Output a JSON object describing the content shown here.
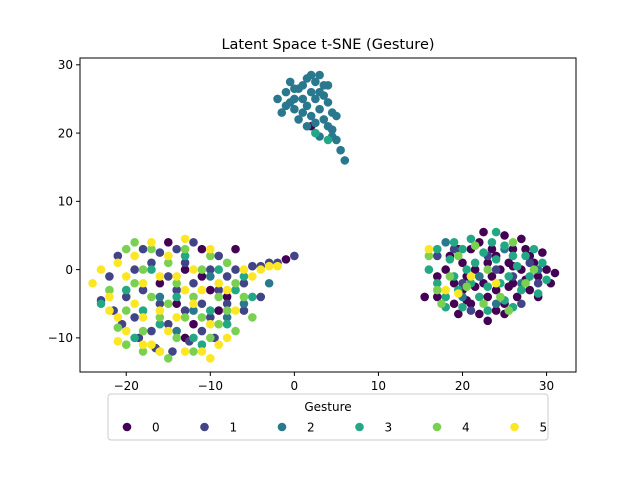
{
  "chart_data": {
    "type": "scatter",
    "title": "Latent Space t-SNE (Gesture)",
    "xlabel": "",
    "ylabel": "",
    "xlim": [
      -25.5,
      33.5
    ],
    "ylim": [
      -15,
      31
    ],
    "xticks": [
      -20,
      -10,
      0,
      10,
      20,
      30
    ],
    "yticks": [
      -10,
      0,
      10,
      20,
      30
    ],
    "grid": false,
    "legend": {
      "title": "Gesture",
      "placement": "bottom-center",
      "entries": [
        "0",
        "1",
        "2",
        "3",
        "4",
        "5"
      ]
    },
    "colors": {
      "0": "#440154",
      "1": "#414487",
      "2": "#2a788e",
      "3": "#22a884",
      "4": "#7ad151",
      "5": "#fde725"
    },
    "series": [
      {
        "name": "0",
        "points": [
          [
            -11,
            -1
          ],
          [
            -13,
            0
          ],
          [
            -10,
            -3
          ],
          [
            -14,
            -5
          ],
          [
            -16,
            -2
          ],
          [
            -8,
            -4
          ],
          [
            -11,
            3
          ],
          [
            -15,
            4
          ],
          [
            -9,
            -6
          ],
          [
            -12,
            -8
          ],
          [
            -7,
            3
          ],
          [
            -13,
            -10
          ],
          [
            -1,
            1.5
          ],
          [
            2,
            21
          ],
          [
            15.5,
            -4
          ],
          [
            17,
            -4
          ],
          [
            17,
            -1
          ],
          [
            18,
            0
          ],
          [
            18.5,
            2
          ],
          [
            19,
            -2
          ],
          [
            19,
            -5
          ],
          [
            19.5,
            -6.5
          ],
          [
            20,
            1
          ],
          [
            20,
            -3
          ],
          [
            20.5,
            -1
          ],
          [
            21,
            -5
          ],
          [
            21,
            3
          ],
          [
            21.5,
            0
          ],
          [
            22,
            -6.5
          ],
          [
            22,
            4
          ],
          [
            22.5,
            -2
          ],
          [
            23,
            1
          ],
          [
            23,
            -4
          ],
          [
            23,
            -7.5
          ],
          [
            23.5,
            -1
          ],
          [
            24,
            2
          ],
          [
            24,
            -3
          ],
          [
            24.5,
            0
          ],
          [
            25,
            5
          ],
          [
            25,
            -5
          ],
          [
            25.5,
            1
          ],
          [
            26,
            -2
          ],
          [
            26,
            3
          ],
          [
            26.5,
            -4
          ],
          [
            27,
            0
          ],
          [
            27,
            4.5
          ],
          [
            27.5,
            -1.5
          ],
          [
            28,
            2
          ],
          [
            28,
            -3
          ],
          [
            28.5,
            1
          ],
          [
            29,
            -1
          ],
          [
            29,
            -4
          ],
          [
            29.5,
            2.5
          ],
          [
            30,
            0
          ],
          [
            30.5,
            -2
          ],
          [
            31,
            -0.5
          ],
          [
            22,
            -1
          ],
          [
            24,
            -6
          ],
          [
            26,
            0.5
          ],
          [
            20.5,
            -4.5
          ],
          [
            23.5,
            3
          ],
          [
            25.5,
            -2.5
          ],
          [
            21.5,
            -2.5
          ],
          [
            27.5,
            3
          ],
          [
            19.5,
            3
          ],
          [
            25,
            -6.5
          ],
          [
            22.5,
            5.5
          ]
        ]
      },
      {
        "name": "1",
        "points": [
          [
            -22,
            -1
          ],
          [
            -21,
            2
          ],
          [
            -20,
            -4
          ],
          [
            -19,
            0
          ],
          [
            -19,
            -7
          ],
          [
            -18,
            3
          ],
          [
            -18,
            -3
          ],
          [
            -17,
            -9
          ],
          [
            -17,
            1
          ],
          [
            -16,
            -5
          ],
          [
            -16,
            2.5
          ],
          [
            -15,
            -1
          ],
          [
            -15,
            -8
          ],
          [
            -14,
            3
          ],
          [
            -14,
            -3
          ],
          [
            -13,
            -6
          ],
          [
            -13,
            1
          ],
          [
            -12,
            -2
          ],
          [
            -12,
            4
          ],
          [
            -11,
            -5
          ],
          [
            -11,
            -9
          ],
          [
            -10,
            0
          ],
          [
            -10,
            -7
          ],
          [
            -9,
            2
          ],
          [
            -9,
            -3
          ],
          [
            -8,
            -1
          ],
          [
            -8,
            -5
          ],
          [
            -7,
            0
          ],
          [
            -6,
            -2
          ],
          [
            -6,
            -6
          ],
          [
            -5,
            0.5
          ],
          [
            -4,
            -4
          ],
          [
            -4,
            0.5
          ],
          [
            -3,
            1
          ],
          [
            -2,
            1
          ],
          [
            0,
            2
          ],
          [
            -20.5,
            -8
          ],
          [
            -18.5,
            -10
          ],
          [
            -16.5,
            -11.5
          ],
          [
            -23,
            -4.5
          ],
          [
            -21.5,
            -6
          ],
          [
            -12.5,
            -10.5
          ],
          [
            -9.5,
            -10
          ],
          [
            -14.5,
            -12
          ],
          [
            17,
            2
          ],
          [
            19,
            3
          ],
          [
            23,
            2
          ],
          [
            26,
            -1
          ],
          [
            29,
            -2
          ],
          [
            21,
            -6
          ],
          [
            24,
            0
          ],
          [
            27,
            -5
          ],
          [
            20,
            -2
          ],
          [
            28,
            1
          ]
        ]
      },
      {
        "name": "2",
        "points": [
          [
            -1,
            26
          ],
          [
            -1,
            24
          ],
          [
            -0.5,
            27.5
          ],
          [
            0,
            25
          ],
          [
            0,
            23.5
          ],
          [
            0.5,
            26.5
          ],
          [
            0.5,
            22
          ],
          [
            1,
            27
          ],
          [
            1,
            25
          ],
          [
            1,
            23
          ],
          [
            1.5,
            28
          ],
          [
            1.5,
            24
          ],
          [
            2,
            26
          ],
          [
            2,
            22.5
          ],
          [
            2.5,
            27.5
          ],
          [
            2.5,
            25
          ],
          [
            2.5,
            21.5
          ],
          [
            3,
            28.5
          ],
          [
            3,
            26
          ],
          [
            3,
            23.5
          ],
          [
            3.5,
            25.5
          ],
          [
            3.5,
            22
          ],
          [
            4,
            27
          ],
          [
            4,
            24.5
          ],
          [
            4,
            21
          ],
          [
            4.5,
            23
          ],
          [
            4.5,
            20.5
          ],
          [
            5,
            22.5
          ],
          [
            5,
            19
          ],
          [
            5.5,
            17.5
          ],
          [
            6,
            16
          ],
          [
            -2,
            25
          ],
          [
            -1.5,
            23
          ],
          [
            -0.5,
            24.5
          ],
          [
            2,
            28.5
          ],
          [
            3.5,
            27
          ],
          [
            1.5,
            21
          ],
          [
            4.5,
            19.5
          ],
          [
            3,
            19.5
          ],
          [
            0,
            26.5
          ],
          [
            -16,
            -4
          ],
          [
            -12,
            -6
          ],
          [
            -10,
            -1
          ],
          [
            -6,
            -5
          ],
          [
            -14,
            -9
          ],
          [
            -8,
            -7
          ],
          [
            -3,
            -2
          ],
          [
            18,
            4
          ],
          [
            22,
            -1
          ],
          [
            25,
            3
          ],
          [
            27,
            -2
          ],
          [
            20,
            -4
          ],
          [
            24,
            -5
          ],
          [
            29,
            0
          ]
        ]
      },
      {
        "name": "3",
        "points": [
          [
            -23,
            -5
          ],
          [
            -20,
            -3
          ],
          [
            -18,
            -6
          ],
          [
            -16,
            -8
          ],
          [
            -14,
            -4
          ],
          [
            -12,
            -10
          ],
          [
            -10,
            -6
          ],
          [
            -8,
            -8
          ],
          [
            -7,
            -3
          ],
          [
            -9,
            0
          ],
          [
            -13,
            2
          ],
          [
            -17,
            0
          ],
          [
            -19,
            -10
          ],
          [
            -11,
            -11
          ],
          [
            -6,
            -1
          ],
          [
            -5,
            -4
          ],
          [
            16,
            0
          ],
          [
            17,
            3
          ],
          [
            17,
            -2
          ],
          [
            18,
            -4
          ],
          [
            18.5,
            1.5
          ],
          [
            19,
            4
          ],
          [
            19,
            -1
          ],
          [
            19.5,
            -3
          ],
          [
            20,
            3
          ],
          [
            20,
            -5.5
          ],
          [
            20.5,
            0
          ],
          [
            21,
            4.5
          ],
          [
            21,
            -2
          ],
          [
            21.5,
            1
          ],
          [
            22,
            -4
          ],
          [
            22.5,
            2.5
          ],
          [
            23,
            -2.5
          ],
          [
            23,
            -6
          ],
          [
            23.5,
            4
          ],
          [
            24,
            1.5
          ],
          [
            24.5,
            -2
          ],
          [
            25,
            3.5
          ],
          [
            25,
            -4.5
          ],
          [
            25.5,
            -1
          ],
          [
            26,
            2
          ],
          [
            26,
            -5.5
          ],
          [
            26.5,
            0.5
          ],
          [
            27,
            -3
          ],
          [
            27.5,
            2
          ],
          [
            28,
            -1
          ],
          [
            28.5,
            3
          ],
          [
            29,
            -3.5
          ],
          [
            29.5,
            1
          ],
          [
            30,
            -1.5
          ],
          [
            18,
            -5.5
          ],
          [
            24,
            5.5
          ],
          [
            2.5,
            20
          ],
          [
            4,
            19
          ]
        ]
      },
      {
        "name": "4",
        "points": [
          [
            -22,
            -3
          ],
          [
            -21,
            -8.5
          ],
          [
            -20,
            3
          ],
          [
            -20,
            -6
          ],
          [
            -19,
            -2
          ],
          [
            -19,
            4
          ],
          [
            -18,
            -9
          ],
          [
            -18,
            0
          ],
          [
            -17,
            -4
          ],
          [
            -17,
            3
          ],
          [
            -16,
            -7
          ],
          [
            -16,
            -12
          ],
          [
            -15,
            1
          ],
          [
            -15,
            -5
          ],
          [
            -14,
            -10
          ],
          [
            -14,
            -2
          ],
          [
            -13,
            -7
          ],
          [
            -13,
            3
          ],
          [
            -12,
            -4
          ],
          [
            -12,
            -12
          ],
          [
            -11,
            0
          ],
          [
            -11,
            -7
          ],
          [
            -10,
            -10
          ],
          [
            -10,
            2
          ],
          [
            -9,
            -4
          ],
          [
            -9,
            -8
          ],
          [
            -8,
            1
          ],
          [
            -8,
            -6
          ],
          [
            -7,
            -2
          ],
          [
            -7,
            -9
          ],
          [
            -6,
            -4
          ],
          [
            -5,
            -7
          ],
          [
            -15,
            -13
          ],
          [
            -18,
            -12
          ],
          [
            -20,
            -11
          ],
          [
            16,
            2
          ],
          [
            17,
            -3
          ],
          [
            18.5,
            -1
          ],
          [
            19.5,
            2
          ],
          [
            20.5,
            -2.5
          ],
          [
            21.5,
            3.5
          ],
          [
            23,
            0
          ],
          [
            24.5,
            -4
          ],
          [
            26,
            4
          ],
          [
            27.5,
            -2
          ],
          [
            28.5,
            0
          ],
          [
            17.5,
            -5
          ],
          [
            25.5,
            -6
          ],
          [
            22.5,
            -5
          ]
        ]
      },
      {
        "name": "5",
        "points": [
          [
            -24,
            -2
          ],
          [
            -23,
            0
          ],
          [
            -22,
            -4
          ],
          [
            -21,
            1
          ],
          [
            -21,
            -7
          ],
          [
            -20,
            -1
          ],
          [
            -20,
            -9
          ],
          [
            -19,
            2
          ],
          [
            -19,
            -5
          ],
          [
            -18,
            -2
          ],
          [
            -18,
            -7
          ],
          [
            -17,
            -11
          ],
          [
            -17,
            4
          ],
          [
            -16,
            -1
          ],
          [
            -16,
            -6
          ],
          [
            -15,
            2
          ],
          [
            -15,
            -9
          ],
          [
            -14,
            -1
          ],
          [
            -14,
            -7
          ],
          [
            -13,
            4.5
          ],
          [
            -13,
            -3
          ],
          [
            -12,
            -5
          ],
          [
            -12,
            0
          ],
          [
            -11,
            -12
          ],
          [
            -11,
            -3
          ],
          [
            -10,
            3
          ],
          [
            -10,
            -8
          ],
          [
            -9,
            -2
          ],
          [
            -9,
            -11
          ],
          [
            -8,
            -3
          ],
          [
            -7,
            -6
          ],
          [
            -6,
            0
          ],
          [
            -5,
            -1
          ],
          [
            -4,
            0
          ],
          [
            -3,
            0.5
          ],
          [
            -2,
            0.5
          ],
          [
            -21,
            -10.5
          ],
          [
            -18,
            -11
          ],
          [
            -16,
            -12
          ],
          [
            -13,
            -12
          ],
          [
            -10,
            -13
          ],
          [
            -8,
            -10
          ],
          [
            -22,
            -6
          ],
          [
            16,
            3
          ],
          [
            18,
            -3
          ],
          [
            19.5,
            -3.5
          ],
          [
            21,
            -1
          ],
          [
            24,
            -2
          ]
        ]
      }
    ]
  }
}
